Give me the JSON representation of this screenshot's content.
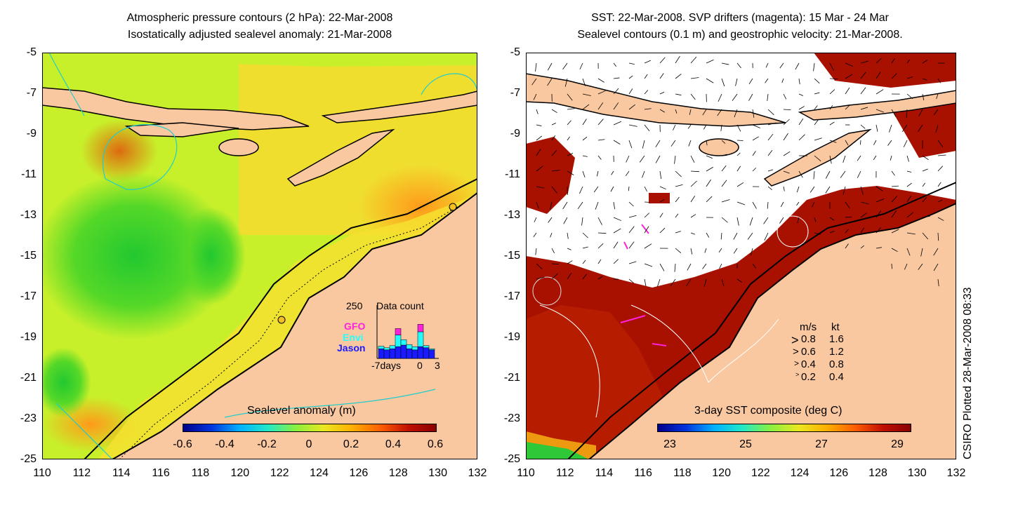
{
  "left_panel": {
    "title_line1": "Atmospheric pressure contours (2 hPa): 22-Mar-2008",
    "title_line2": "Isostatically adjusted sealevel anomaly: 21-Mar-2008",
    "colorbar_label": "Sealevel anomaly (m)",
    "colorbar_ticks": [
      "-0.6",
      "-0.4",
      "-0.2",
      "0",
      "0.2",
      "0.4",
      "0.6"
    ],
    "colors": {
      "ocean": "#c8f02a",
      "land": "#fac8a0",
      "anomaly_low": "#22c830",
      "anomaly_high": "#ff9a1a"
    },
    "inset": {
      "max_label": "250",
      "title": "Data count",
      "legend": [
        {
          "name": "GFO",
          "color": "#ff22dd"
        },
        {
          "name": "Envi",
          "color": "#22ffff"
        },
        {
          "name": "Jason",
          "color": "#1a1aff"
        }
      ],
      "x_left_label": "-7days",
      "x_mid_label": "0",
      "x_right_label": "3",
      "bars": {
        "days": [
          -7,
          -6,
          -5,
          -4,
          -3,
          -2,
          -1,
          0,
          1,
          2
        ],
        "jason": [
          0.18,
          0.16,
          0.18,
          0.22,
          0.25,
          0.18,
          0.16,
          0.22,
          0.2,
          0.16
        ],
        "envi": [
          0.05,
          0.04,
          0.06,
          0.22,
          0.1,
          0.08,
          0.06,
          0.28,
          0.04,
          0.02
        ],
        "gfo": [
          0,
          0,
          0,
          0.12,
          0,
          0,
          0,
          0.14,
          0,
          0
        ]
      }
    }
  },
  "right_panel": {
    "title_line1": "SST: 22-Mar-2008. SVP drifters (magenta): 15 Mar - 24 Mar",
    "title_line2": "Sealevel contours (0.1 m) and geostrophic velocity: 21-Mar-2008.",
    "colorbar_label": "3-day SST composite (deg C)",
    "colorbar_ticks": [
      "23",
      "25",
      "27",
      "29"
    ],
    "colors": {
      "cloud": "#ffffff",
      "land": "#fac8a0",
      "sst_warm": "#a81000"
    },
    "velocity_key": {
      "header": [
        "m/s",
        "kt"
      ],
      "rows": [
        [
          "0.8",
          "1.6"
        ],
        [
          "0.6",
          "1.2"
        ],
        [
          "0.4",
          "0.8"
        ],
        [
          "0.2",
          "0.4"
        ]
      ]
    }
  },
  "axes": {
    "x_ticks": [
      "110",
      "112",
      "114",
      "116",
      "118",
      "120",
      "122",
      "124",
      "126",
      "128",
      "130",
      "132"
    ],
    "y_ticks": [
      "-5",
      "-7",
      "-9",
      "-11",
      "-13",
      "-15",
      "-17",
      "-19",
      "-21",
      "-23",
      "-25"
    ]
  },
  "credit": "CSIRO Plotted 28-Mar-2008 08:33"
}
